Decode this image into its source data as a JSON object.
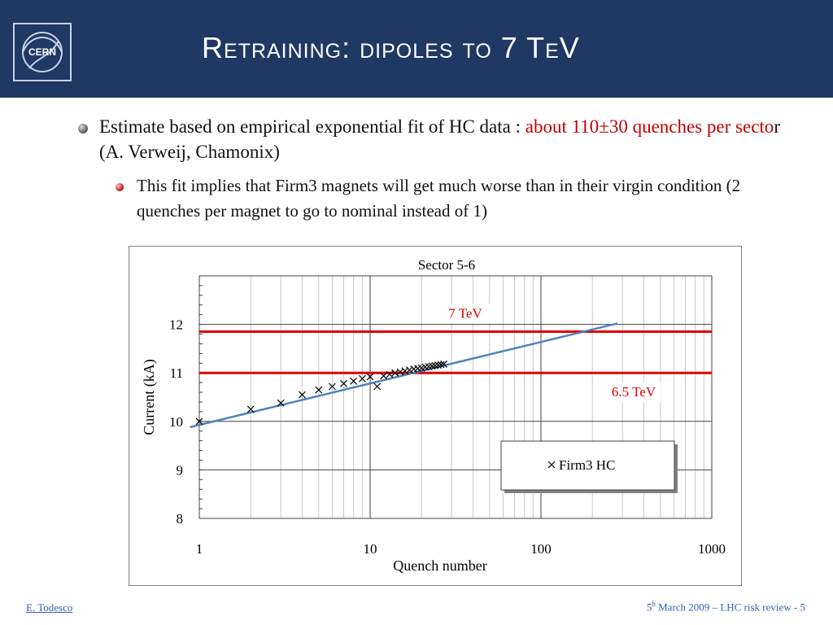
{
  "header": {
    "title": "Retraining: dipoles to 7 TeV",
    "logo_text": "CERN"
  },
  "bullets": {
    "b1_plain": "Estimate based on empirical exponential fit of HC data : ",
    "b1_red1": "about 110±30 quenches per secto",
    "b1_plain2": "r (A. Verweij, Chamonix)",
    "b2": "This fit implies that Firm3 magnets will get much worse than in their virgin condition (2 quenches per magnet to go to nominal instead of 1)"
  },
  "chart_data": {
    "type": "scatter",
    "title": "Sector 5-6",
    "xlabel": "Quench number",
    "ylabel": "Current (kA)",
    "x_scale": "log",
    "xlim": [
      1,
      1000
    ],
    "ylim": [
      8,
      13
    ],
    "x_ticks": [
      "1",
      "10",
      "100",
      "1000"
    ],
    "y_ticks": [
      "8",
      "9",
      "10",
      "11",
      "12"
    ],
    "grid": true,
    "legend_position": "lower-right",
    "series": [
      {
        "name": "Firm3 HC",
        "marker": "x",
        "x": [
          1,
          2,
          3,
          4,
          5,
          6,
          7,
          8,
          9,
          10,
          11,
          12,
          13,
          14,
          15,
          16,
          17,
          18,
          19,
          20,
          21,
          22,
          23,
          24,
          25,
          26,
          27
        ],
        "y": [
          10.0,
          10.25,
          10.38,
          10.55,
          10.65,
          10.72,
          10.78,
          10.83,
          10.88,
          10.92,
          10.72,
          10.94,
          10.97,
          11.0,
          11.02,
          11.04,
          11.06,
          11.08,
          11.09,
          11.1,
          11.12,
          11.13,
          11.14,
          11.15,
          11.16,
          11.17,
          11.18
        ]
      }
    ],
    "fit": {
      "x": [
        0.88,
        280
      ],
      "y": [
        9.88,
        12.02
      ],
      "color": "#4f81bd"
    },
    "reference_lines": [
      {
        "label": "7 TeV",
        "y": 11.85,
        "color": "#e00000"
      },
      {
        "label": "6.5 TeV",
        "y": 11.0,
        "color": "#e00000"
      }
    ]
  },
  "footer": {
    "author": "E. Todesco",
    "date_prefix": "5",
    "date_sup": "h",
    "date_rest": " March 2009 – LHC risk review - 5"
  },
  "colors": {
    "header_bg": "#1f3864",
    "accent_red": "#c00000",
    "footer_blue": "#2e62b8"
  }
}
